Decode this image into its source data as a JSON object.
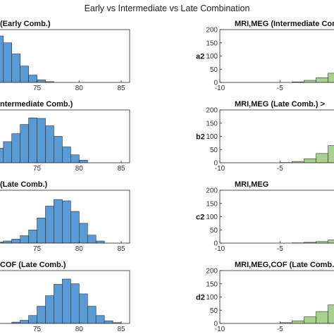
{
  "figure": {
    "suptitle": "Early vs Intermediate vs Late Combination"
  },
  "colors": {
    "left_bar": "#5b9bd5",
    "right_bar": "#a9d18e",
    "edge": "#2f2f2f",
    "vline": "#000000"
  },
  "chart_data": [
    {
      "type": "bar",
      "panel": "left-1",
      "title": "(Early Comb.)",
      "panel_label": "",
      "bin_width": 1,
      "bin_starts": [
        66,
        67,
        68,
        69,
        70,
        71,
        72,
        73,
        74,
        75,
        76
      ],
      "values": [
        95,
        140,
        170,
        182,
        176,
        150,
        108,
        62,
        28,
        10,
        3
      ],
      "xlim": [
        66,
        86
      ],
      "ylim": [
        0,
        200
      ],
      "xticks": [
        70,
        75,
        80,
        85
      ],
      "xtick_labels": [
        "70",
        "75",
        "80",
        "85"
      ],
      "yticks": [],
      "ytick_labels": []
    },
    {
      "type": "bar",
      "panel": "left-2",
      "title": "ntermediate Comb.)",
      "panel_label": "",
      "bin_width": 1,
      "bin_starts": [
        66,
        67,
        68,
        69,
        70,
        71,
        72,
        73,
        74,
        75,
        76,
        77,
        78,
        79,
        80
      ],
      "values": [
        8,
        15,
        25,
        38,
        55,
        80,
        110,
        145,
        170,
        168,
        140,
        100,
        60,
        30,
        10
      ],
      "xlim": [
        66,
        86
      ],
      "ylim": [
        0,
        200
      ],
      "xticks": [
        70,
        75,
        80,
        85
      ],
      "xtick_labels": [
        "70",
        "75",
        "80",
        "85"
      ],
      "yticks": [],
      "ytick_labels": []
    },
    {
      "type": "bar",
      "panel": "left-3",
      "title": "(Late Comb.)",
      "panel_label": "",
      "bin_width": 1,
      "bin_starts": [
        70,
        71,
        72,
        73,
        74,
        75,
        76,
        77,
        78,
        79,
        80,
        81,
        82
      ],
      "values": [
        4,
        8,
        15,
        28,
        50,
        95,
        140,
        165,
        160,
        120,
        75,
        30,
        8
      ],
      "xlim": [
        66,
        86
      ],
      "ylim": [
        0,
        200
      ],
      "xticks": [
        70,
        75,
        80,
        85
      ],
      "xtick_labels": [
        "70",
        "75",
        "80",
        "85"
      ],
      "yticks": [],
      "ytick_labels": []
    },
    {
      "type": "bar",
      "panel": "left-4",
      "title": "COF (Late Comb.)",
      "panel_label": "",
      "bin_width": 1,
      "bin_starts": [
        72,
        73,
        74,
        75,
        76,
        77,
        78,
        79,
        80,
        81,
        82,
        83,
        84
      ],
      "values": [
        5,
        12,
        30,
        65,
        105,
        148,
        168,
        150,
        112,
        65,
        30,
        10,
        3
      ],
      "xlim": [
        66,
        86
      ],
      "ylim": [
        0,
        200
      ],
      "xticks": [
        70,
        75,
        80,
        85
      ],
      "xtick_labels": [
        "70",
        "75",
        "80",
        "85"
      ],
      "yticks": [],
      "ytick_labels": []
    },
    {
      "type": "bar",
      "panel": "right-1",
      "title": "MRI,MEG (Intermediate Comb.",
      "panel_label": "a2",
      "bin_width": 1,
      "bin_starts": [
        -4,
        -3,
        -2,
        -1,
        0,
        1,
        2
      ],
      "values": [
        2,
        8,
        18,
        35,
        55,
        75,
        90
      ],
      "xlim": [
        -10,
        4
      ],
      "ylim": [
        0,
        200
      ],
      "vline": 0,
      "xticks": [
        -10,
        -5,
        0
      ],
      "xtick_labels": [
        "-10",
        "-5",
        "0"
      ],
      "yticks": [
        0,
        50,
        100,
        150,
        200
      ],
      "ytick_labels": [
        "0",
        "50",
        "100",
        "150",
        "200"
      ]
    },
    {
      "type": "bar",
      "panel": "right-2",
      "title": "MRI,MEG (Late Comb.) >",
      "panel_label": "b2",
      "bin_width": 1,
      "bin_starts": [
        -5,
        -4,
        -3,
        -2,
        -1,
        0,
        1,
        2
      ],
      "values": [
        1,
        5,
        15,
        35,
        65,
        110,
        150,
        175
      ],
      "xlim": [
        -10,
        4
      ],
      "ylim": [
        0,
        200
      ],
      "vline": 0,
      "xticks": [
        -10,
        -5,
        0
      ],
      "xtick_labels": [
        "-10",
        "-5",
        "0"
      ],
      "yticks": [
        0,
        50,
        100,
        150,
        200
      ],
      "ytick_labels": [
        "0",
        "50",
        "100",
        "150",
        "200"
      ]
    },
    {
      "type": "bar",
      "panel": "right-3",
      "title": "MRI,MEG",
      "panel_label": "c2",
      "bin_width": 1,
      "bin_starts": [
        -4,
        -3,
        -2,
        -1,
        0,
        1,
        2
      ],
      "values": [
        1,
        3,
        6,
        12,
        25,
        45,
        80
      ],
      "xlim": [
        -10,
        4
      ],
      "ylim": [
        0,
        200
      ],
      "vline": 0,
      "xticks": [
        -10,
        -5,
        0
      ],
      "xtick_labels": [
        "-10",
        "-5",
        "0"
      ],
      "yticks": [
        0,
        50,
        100,
        150,
        200
      ],
      "ytick_labels": [
        "0",
        "50",
        "100",
        "150",
        "200"
      ]
    },
    {
      "type": "bar",
      "panel": "right-4",
      "title": "MRI,MEG,COF (Late Comb.",
      "panel_label": "d2",
      "bin_width": 1,
      "bin_starts": [
        -5,
        -4,
        -3,
        -2,
        -1,
        0,
        1,
        2
      ],
      "values": [
        3,
        10,
        25,
        45,
        70,
        100,
        140,
        160
      ],
      "xlim": [
        -10,
        4
      ],
      "ylim": [
        0,
        200
      ],
      "vline": 0,
      "xticks": [
        -10,
        -5,
        0
      ],
      "xtick_labels": [
        "-10",
        "-5",
        "0"
      ],
      "yticks": [
        0,
        50,
        100,
        150,
        200
      ],
      "ytick_labels": [
        "0",
        "50",
        "100",
        "150",
        "200"
      ]
    }
  ]
}
